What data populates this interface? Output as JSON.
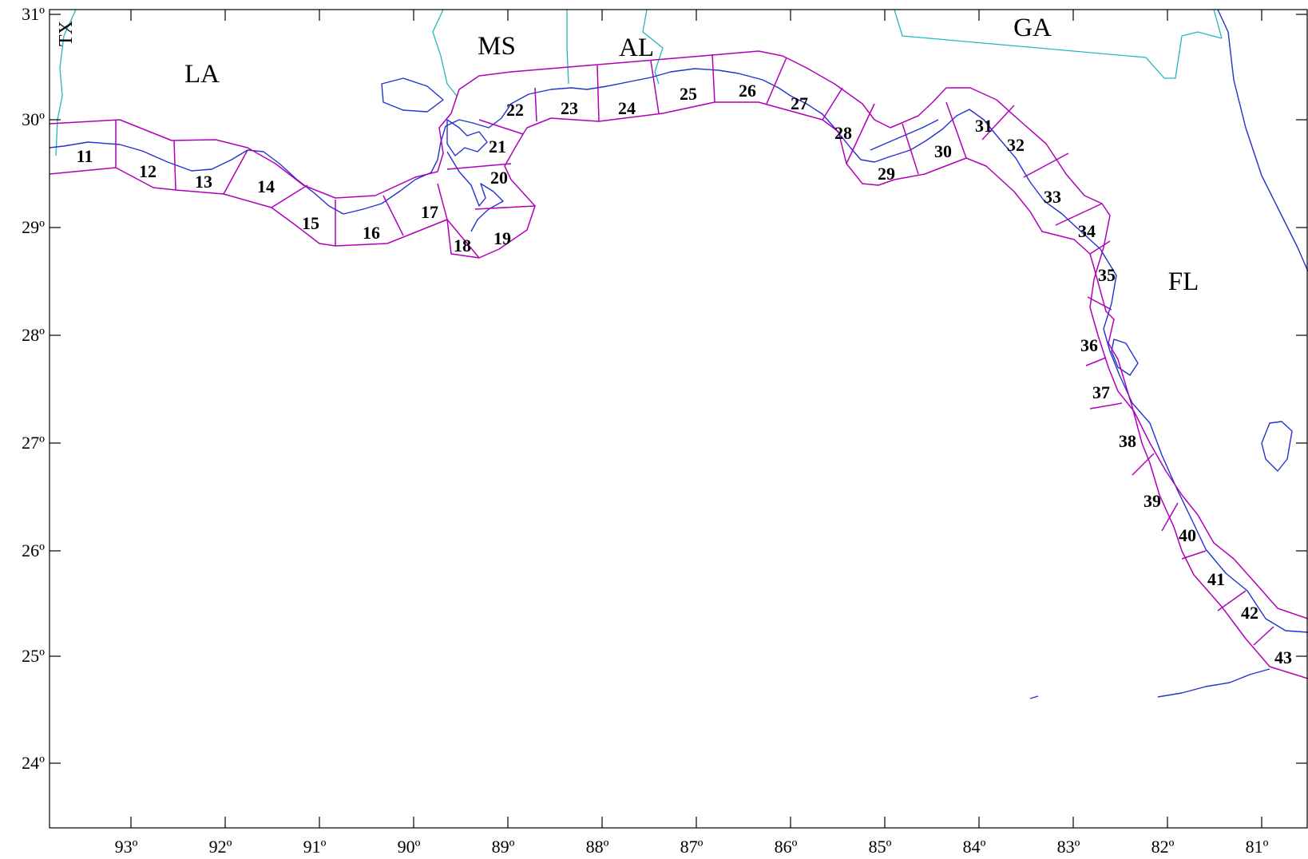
{
  "x_ticks": [
    "93º",
    "92º",
    "91º",
    "90º",
    "89º",
    "88º",
    "87º",
    "86º",
    "85º",
    "84º",
    "83º",
    "82º",
    "81º"
  ],
  "y_ticks": [
    "31º",
    "30º",
    "29º",
    "28º",
    "27º",
    "26º",
    "25º",
    "24º"
  ],
  "states": [
    "TX",
    "LA",
    "MS",
    "AL",
    "GA",
    "FL"
  ],
  "zones": [
    "11",
    "12",
    "13",
    "14",
    "15",
    "16",
    "17",
    "18",
    "19",
    "20",
    "21",
    "22",
    "23",
    "24",
    "25",
    "26",
    "27",
    "28",
    "29",
    "30",
    "31",
    "32",
    "33",
    "34",
    "35",
    "36",
    "37",
    "38",
    "39",
    "40",
    "41",
    "42",
    "43"
  ],
  "colors": {
    "coastline": "#2233cc",
    "state_border": "#22b8b8",
    "zone_outline": "#b000b8",
    "frame": "#000000"
  }
}
